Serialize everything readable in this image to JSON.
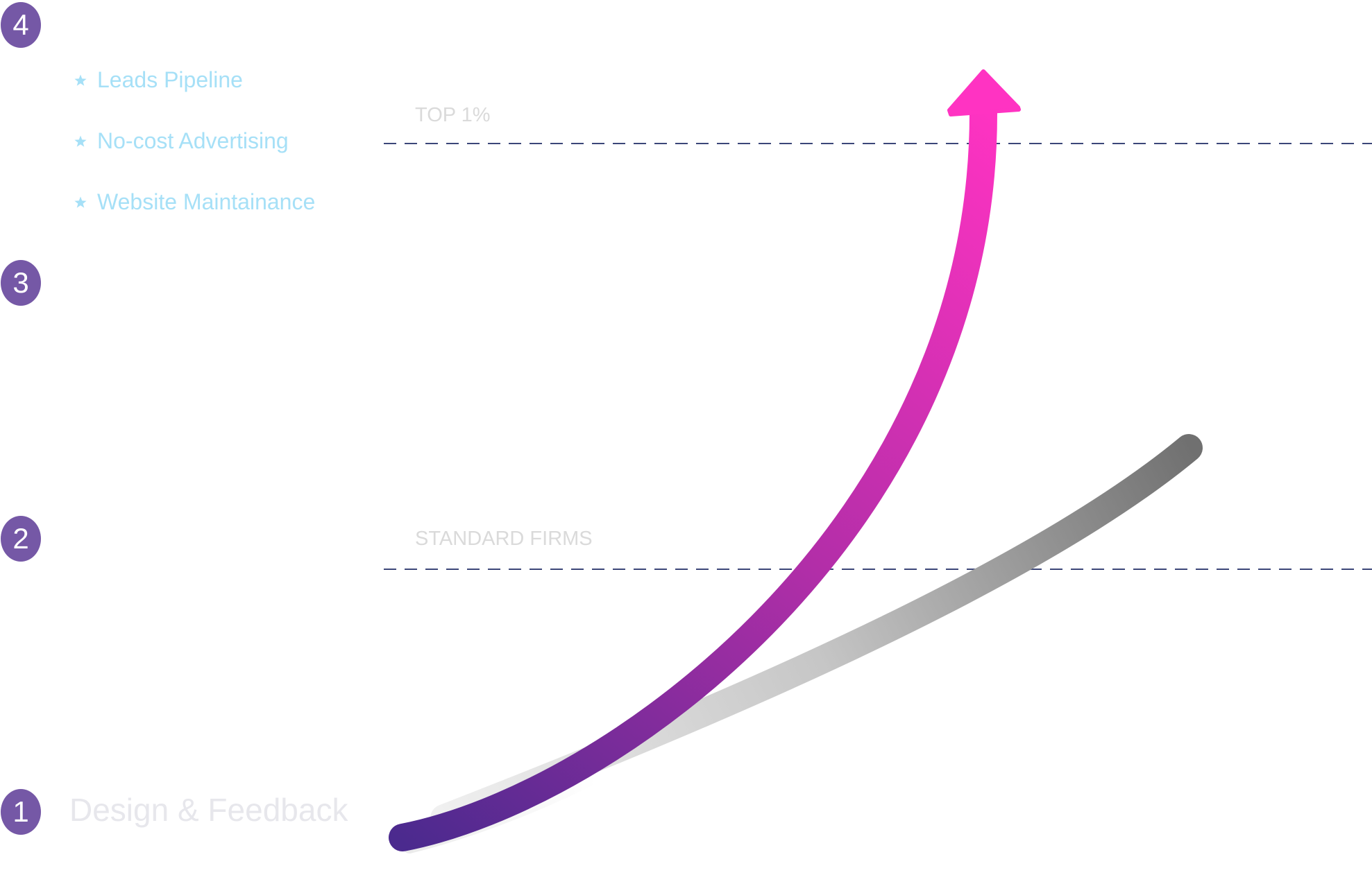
{
  "steps": [
    {
      "number": "1",
      "label": "Design & Feedback"
    },
    {
      "number": "2"
    },
    {
      "number": "3"
    },
    {
      "number": "4"
    }
  ],
  "features": [
    "Leads Pipeline",
    "No-cost Advertising",
    "Website Maintainance"
  ],
  "levels": {
    "top": "TOP 1%",
    "standard": "STANDARD FIRMS"
  },
  "colors": {
    "step_badge": "#7558A6",
    "feature_text": "#A6E0F7",
    "step_label": "#E7E7EC",
    "reference_line": "#3B4678",
    "axis": "#2E3A70",
    "growth_start": "#4B2A8E",
    "growth_end": "#FF33C2",
    "standard_start": "#EEEEEE",
    "standard_end": "#707070"
  },
  "icons": {
    "bullet": "star-icon",
    "arrow_head": "arrow-up-icon"
  }
}
